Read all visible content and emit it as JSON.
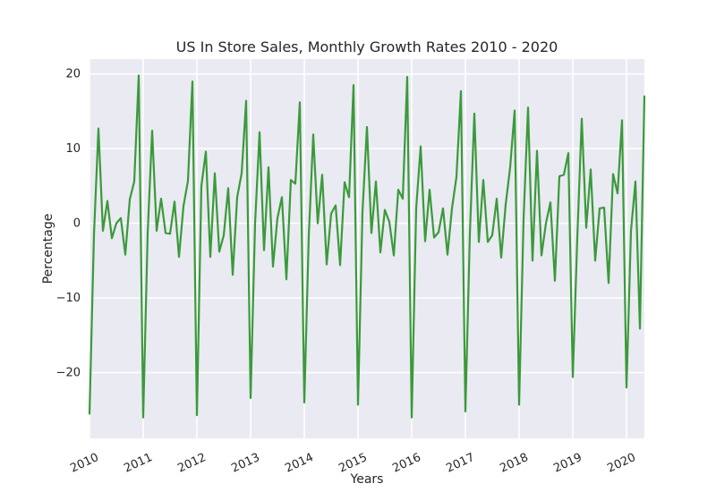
{
  "chart_data": {
    "type": "line",
    "title": "US In Store Sales, Monthly Growth Rates 2010 - 2020",
    "xlabel": "Years",
    "ylabel": "Percentage",
    "x_ticks": [
      "2010",
      "2011",
      "2012",
      "2013",
      "2014",
      "2015",
      "2016",
      "2017",
      "2018",
      "2019",
      "2020"
    ],
    "y_ticks": [
      -20,
      -10,
      0,
      10,
      20
    ],
    "xlim": [
      2010.0,
      2020.3333
    ],
    "ylim": [
      -28.8,
      22
    ],
    "grid": true,
    "series": [
      {
        "color": "#3a9a3a",
        "x_start": "2010-01",
        "x_step": "month",
        "values": [
          -25.5,
          -1.5,
          12.7,
          -1.0,
          3.0,
          -2.0,
          0.0,
          0.7,
          -4.2,
          3.2,
          5.6,
          19.8,
          -26.0,
          -1.3,
          12.4,
          -1.0,
          3.3,
          -1.3,
          -1.4,
          2.9,
          -4.5,
          2.3,
          5.7,
          19.0,
          -25.7,
          5.0,
          9.6,
          -4.5,
          6.7,
          -3.8,
          -1.6,
          4.7,
          -6.9,
          3.5,
          6.7,
          16.4,
          -23.4,
          0.0,
          12.2,
          -3.6,
          7.5,
          -5.8,
          0.7,
          3.5,
          -7.5,
          5.8,
          5.3,
          16.2,
          -24.0,
          -1.7,
          11.9,
          0.0,
          6.5,
          -5.5,
          1.3,
          2.4,
          -5.6,
          5.5,
          3.5,
          18.5,
          -24.3,
          1.5,
          12.9,
          -1.3,
          5.6,
          -3.9,
          1.8,
          0.2,
          -4.3,
          4.5,
          3.3,
          19.6,
          -26.0,
          2.0,
          10.3,
          -2.4,
          4.5,
          -1.9,
          -1.2,
          2.0,
          -4.2,
          2.0,
          6.2,
          17.7,
          -25.2,
          -1.4,
          14.7,
          -2.5,
          5.8,
          -2.5,
          -1.6,
          3.3,
          -4.6,
          2.5,
          7.5,
          15.1,
          -24.3,
          0.6,
          15.5,
          -5.0,
          9.7,
          -4.3,
          0.0,
          2.8,
          -7.7,
          6.3,
          6.5,
          9.4,
          -20.6,
          -2.0,
          14.0,
          -0.6,
          7.2,
          -5.0,
          2.0,
          2.1,
          -8.0,
          6.6,
          4.0,
          13.8,
          -22.0,
          -1.0,
          5.6,
          -14.1,
          17.0
        ]
      }
    ]
  }
}
